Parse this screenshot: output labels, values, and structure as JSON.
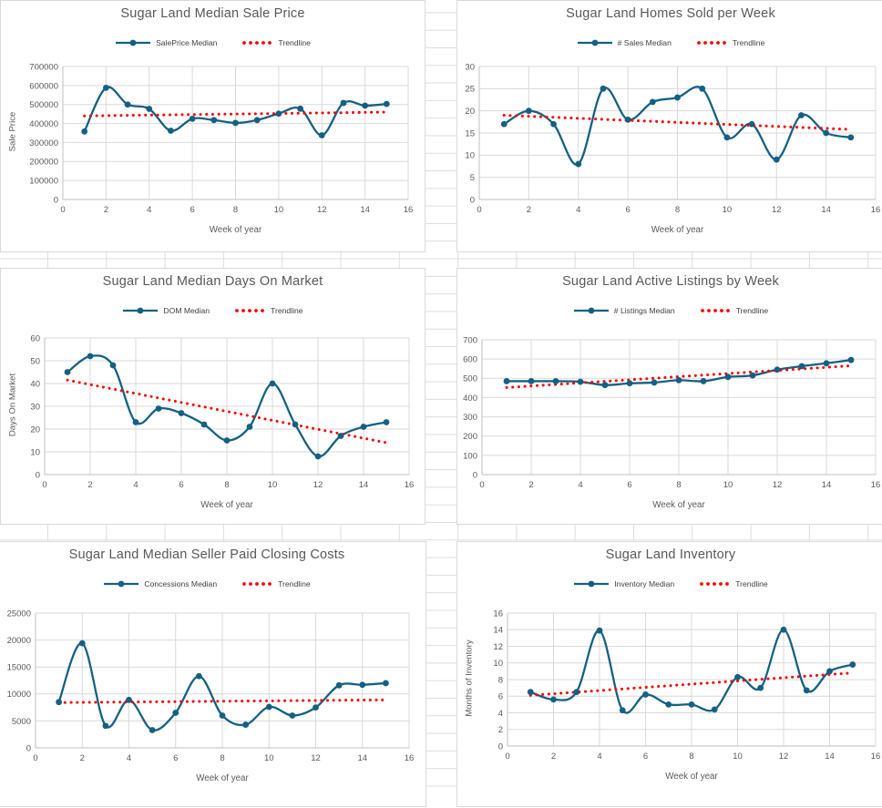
{
  "app": {
    "surface": "spreadsheet-with-embedded-charts"
  },
  "colors": {
    "series_line": "#156082",
    "trendline": "#ff0000",
    "plot_grid": "#d9d9d9",
    "axis_line": "#bfbfbf",
    "title_text": "#595959",
    "tick_text": "#595959",
    "legend_text": "#404040",
    "panel_border": "#d9d9d9",
    "sheet_grid": "#dcdddf"
  },
  "chart_data": [
    {
      "type": "line",
      "title": "Sugar Land Median Sale Price",
      "xlabel": "Week of year",
      "ylabel": "Sale Price",
      "x": [
        1,
        2,
        3,
        4,
        5,
        6,
        7,
        8,
        9,
        10,
        11,
        12,
        13,
        14,
        15
      ],
      "series": [
        {
          "name": "SalePrice Median",
          "values": [
            358000,
            588000,
            500000,
            477000,
            362000,
            425000,
            418000,
            403000,
            418000,
            452000,
            478000,
            338000,
            508000,
            494000,
            503000
          ]
        }
      ],
      "trendline": {
        "name": "Trendline",
        "start": 440000,
        "end": 460000
      },
      "xlim": [
        0,
        16
      ],
      "x_step": 2,
      "ylim": [
        0,
        700000
      ],
      "y_step": 100000,
      "grid": true,
      "legend_position": "top"
    },
    {
      "type": "line",
      "title": "Sugar Land Homes Sold per Week",
      "xlabel": "Week of year",
      "ylabel": "",
      "x": [
        1,
        2,
        3,
        4,
        5,
        6,
        7,
        8,
        9,
        10,
        11,
        12,
        13,
        14,
        15
      ],
      "series": [
        {
          "name": "# Sales Median",
          "values": [
            17,
            20,
            17,
            8,
            25,
            18,
            22,
            23,
            25,
            14,
            17,
            9,
            19,
            15,
            14
          ]
        }
      ],
      "trendline": {
        "name": "Trendline",
        "start": 19,
        "end": 15.8
      },
      "xlim": [
        0,
        16
      ],
      "x_step": 2,
      "ylim": [
        0,
        30
      ],
      "y_step": 5,
      "grid": true,
      "legend_position": "top"
    },
    {
      "type": "line",
      "title": "Sugar Land Median Days On Market",
      "xlabel": "Week of year",
      "ylabel": "Days On Market",
      "x": [
        1,
        2,
        3,
        4,
        5,
        6,
        7,
        8,
        9,
        10,
        11,
        12,
        13,
        14,
        15
      ],
      "series": [
        {
          "name": "DOM Median",
          "values": [
            45,
            52,
            48,
            23,
            29,
            27,
            22,
            15,
            21,
            40,
            22,
            8,
            17,
            21,
            23
          ]
        }
      ],
      "trendline": {
        "name": "Trendline",
        "start": 41.5,
        "end": 14
      },
      "xlim": [
        0,
        16
      ],
      "x_step": 2,
      "ylim": [
        0,
        60
      ],
      "y_step": 10,
      "grid": true,
      "legend_position": "top"
    },
    {
      "type": "line",
      "title": "Sugar Land Active Listings by Week",
      "xlabel": "Week of year",
      "ylabel": "",
      "x": [
        1,
        2,
        3,
        4,
        5,
        6,
        7,
        8,
        9,
        10,
        11,
        12,
        13,
        14,
        15
      ],
      "series": [
        {
          "name": "# Listings Median",
          "values": [
            485,
            485,
            485,
            482,
            465,
            474,
            478,
            490,
            485,
            507,
            515,
            545,
            563,
            578,
            595
          ]
        }
      ],
      "trendline": {
        "name": "Trendline",
        "start": 452,
        "end": 565
      },
      "xlim": [
        0,
        16
      ],
      "x_step": 2,
      "ylim": [
        0,
        700
      ],
      "y_step": 100,
      "grid": true,
      "legend_position": "top"
    },
    {
      "type": "line",
      "title": "Sugar Land Median Seller Paid Closing Costs",
      "xlabel": "Week of year",
      "ylabel": "",
      "x": [
        1,
        2,
        3,
        4,
        5,
        6,
        7,
        8,
        9,
        10,
        11,
        12,
        13,
        14,
        15
      ],
      "series": [
        {
          "name": "Concessions Median",
          "values": [
            8500,
            19400,
            4100,
            8900,
            3300,
            6500,
            13300,
            6000,
            4300,
            7600,
            6000,
            7500,
            11600,
            11700,
            12000
          ]
        }
      ],
      "trendline": {
        "name": "Trendline",
        "start": 8400,
        "end": 8900
      },
      "xlim": [
        0,
        16
      ],
      "x_step": 2,
      "ylim": [
        0,
        25000
      ],
      "y_step": 5000,
      "grid": true,
      "legend_position": "top"
    },
    {
      "type": "line",
      "title": "Sugar Land Inventory",
      "xlabel": "Week of year",
      "ylabel": "Months of Inventory",
      "x": [
        1,
        2,
        3,
        4,
        5,
        6,
        7,
        8,
        9,
        10,
        11,
        12,
        13,
        14,
        15
      ],
      "series": [
        {
          "name": "Inventory Median",
          "values": [
            6.5,
            5.6,
            6.5,
            13.9,
            4.3,
            6.2,
            5.0,
            5.0,
            4.4,
            8.3,
            7.0,
            14.0,
            6.7,
            9.0,
            9.8
          ]
        }
      ],
      "trendline": {
        "name": "Trendline",
        "start": 6.1,
        "end": 8.8
      },
      "xlim": [
        0,
        16
      ],
      "x_step": 2,
      "ylim": [
        0,
        16
      ],
      "y_step": 2,
      "grid": true,
      "legend_position": "top"
    }
  ]
}
